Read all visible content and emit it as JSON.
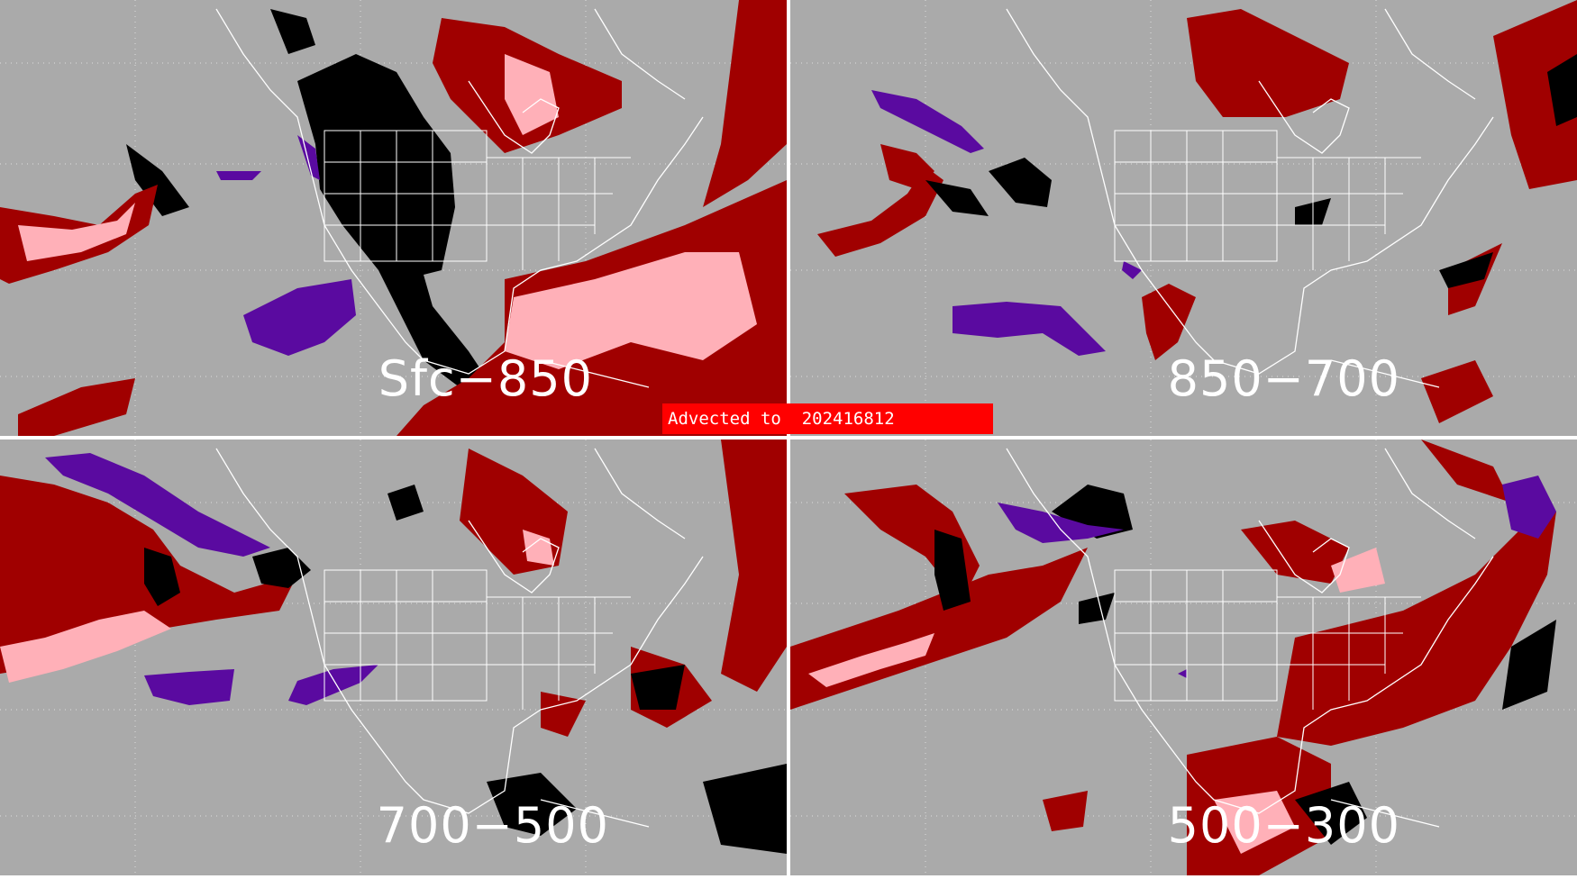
{
  "banner": {
    "text": "Advected to  202416812",
    "color": "#ff0000"
  },
  "panels": [
    {
      "id": "sfc-850",
      "label": "Sfc−850"
    },
    {
      "id": "850-700",
      "label": "850−700"
    },
    {
      "id": "700-500",
      "label": "700−500"
    },
    {
      "id": "500-300",
      "label": "500−300"
    }
  ],
  "map": {
    "background": "#aaaaaa",
    "coastline_color": "#ffffff",
    "graticule": "dotted",
    "category_colors": [
      "#000000",
      "#a00000",
      "#ffb0b8",
      "#5a0aa0"
    ]
  }
}
